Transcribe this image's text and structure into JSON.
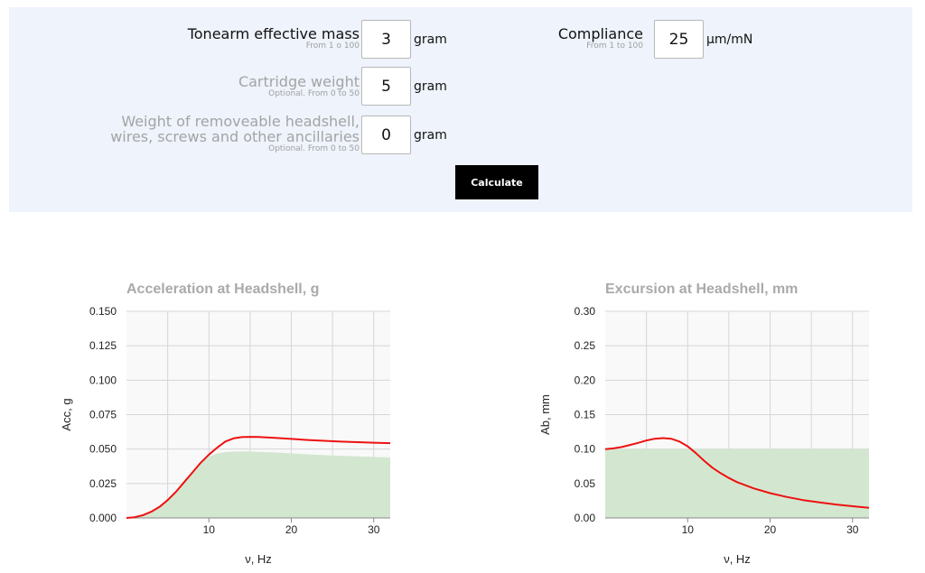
{
  "form": {
    "tonearm_mass": {
      "label": "Tonearm effective mass",
      "hint": "From 1 o 100",
      "value": "3",
      "unit": "gram"
    },
    "cartridge_weight": {
      "label": "Cartridge weight",
      "hint": "Optional. From 0 to 50",
      "value": "5",
      "unit": "gram"
    },
    "headshell_weight": {
      "label_line1": "Weight of removeable headshell,",
      "label_line2": "wires, screws and other ancillaries",
      "hint": "Optional. From 0 to 50",
      "value": "0",
      "unit": "gram"
    },
    "compliance": {
      "label": "Compliance",
      "hint": "From 1 to 100",
      "value": "25",
      "unit": "μm/mN"
    },
    "calculate_label": "Calculate"
  },
  "colors": {
    "panel_bg": "#eef3fc",
    "curve": "#ee1111",
    "fill": "#d3e7d0",
    "plot_bg": "#f9f9f9",
    "grid": "#d6d6d6",
    "title": "#aaaaaa"
  },
  "chart_data": [
    {
      "type": "line",
      "title": "Acceleration at Headshell, g",
      "xlabel": "ν, Hz",
      "ylabel": "Acc, g",
      "xlim": [
        0,
        32
      ],
      "ylim": [
        0,
        0.15
      ],
      "xticks": [
        "10",
        "20",
        "30"
      ],
      "yticks": [
        "0.000",
        "0.025",
        "0.050",
        "0.075",
        "0.100",
        "0.125",
        "0.150"
      ],
      "grid": true,
      "series": [
        {
          "role": "curve",
          "x": [
            0,
            1,
            2,
            3,
            4,
            5,
            6,
            7,
            8,
            9,
            10,
            11,
            12,
            13,
            14,
            15,
            16,
            17,
            18,
            20,
            22,
            24,
            26,
            28,
            30,
            32
          ],
          "y": [
            0,
            0.0005,
            0.002,
            0.0045,
            0.008,
            0.013,
            0.019,
            0.026,
            0.033,
            0.04,
            0.046,
            0.051,
            0.0555,
            0.0578,
            0.0587,
            0.0589,
            0.0588,
            0.0585,
            0.0581,
            0.0574,
            0.0566,
            0.056,
            0.0554,
            0.055,
            0.0546,
            0.0543
          ]
        },
        {
          "role": "fill",
          "x": [
            0,
            1,
            2,
            3,
            4,
            5,
            6,
            7,
            8,
            9,
            10,
            11,
            12,
            13,
            14,
            15,
            16,
            18,
            20,
            22,
            24,
            26,
            28,
            30,
            32
          ],
          "y": [
            0,
            0.0005,
            0.002,
            0.0045,
            0.008,
            0.013,
            0.019,
            0.026,
            0.033,
            0.04,
            0.0445,
            0.0468,
            0.0478,
            0.0482,
            0.0483,
            0.0482,
            0.048,
            0.0476,
            0.0469,
            0.0462,
            0.0456,
            0.0451,
            0.0447,
            0.0443,
            0.044
          ]
        }
      ]
    },
    {
      "type": "line",
      "title": "Excursion at Headshell, mm",
      "xlabel": "ν, Hz",
      "ylabel": "Ab, mm",
      "xlim": [
        0,
        32
      ],
      "ylim": [
        0,
        0.3
      ],
      "xticks": [
        "10",
        "20",
        "30"
      ],
      "yticks": [
        "0.00",
        "0.05",
        "0.10",
        "0.15",
        "0.20",
        "0.25",
        "0.30"
      ],
      "grid": true,
      "series": [
        {
          "role": "curve",
          "x": [
            0,
            1,
            2,
            3,
            4,
            5,
            6,
            7,
            8,
            9,
            10,
            11,
            12,
            13,
            14,
            15,
            16,
            18,
            20,
            22,
            24,
            26,
            28,
            30,
            32
          ],
          "y": [
            0.1,
            0.101,
            0.103,
            0.106,
            0.109,
            0.1125,
            0.115,
            0.116,
            0.115,
            0.111,
            0.104,
            0.094,
            0.083,
            0.073,
            0.065,
            0.058,
            0.052,
            0.043,
            0.036,
            0.0305,
            0.026,
            0.0225,
            0.0195,
            0.017,
            0.0148
          ]
        },
        {
          "role": "fill",
          "x": [
            0,
            32
          ],
          "y": [
            0.1,
            0.1
          ]
        }
      ]
    }
  ]
}
